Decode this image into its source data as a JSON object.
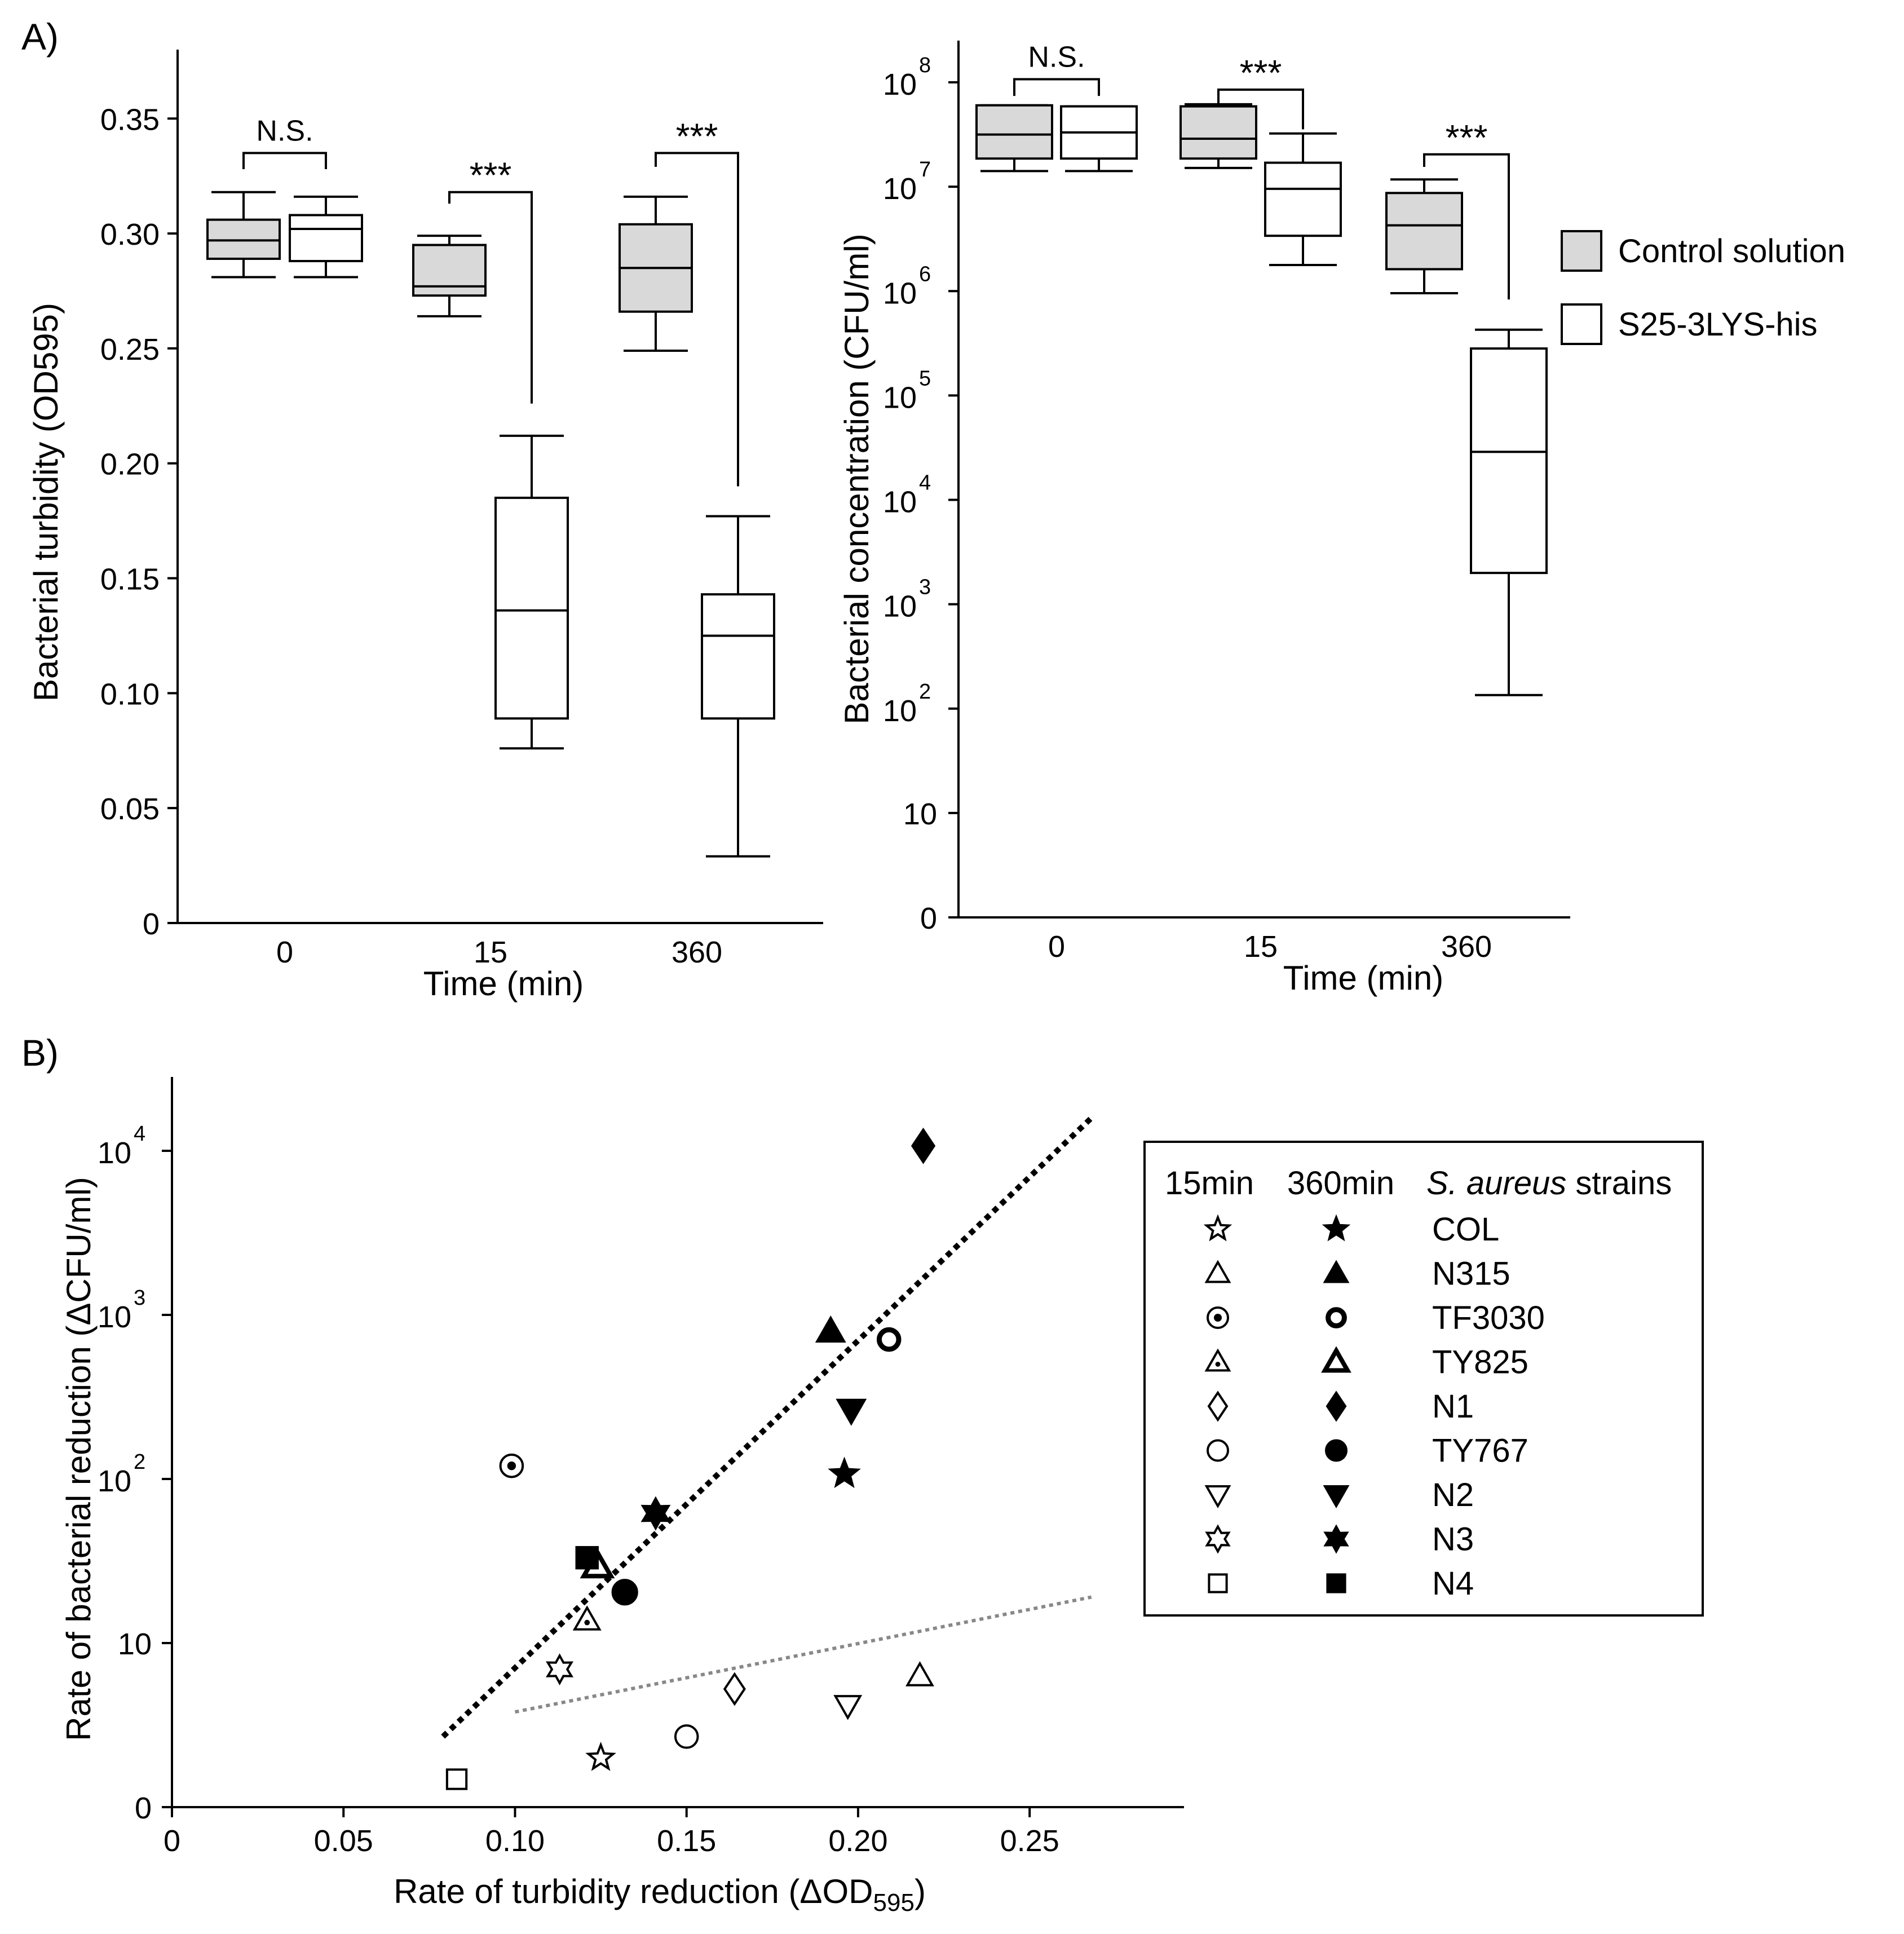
{
  "panels": {
    "a": "A)",
    "b": "B)"
  },
  "chart_data": [
    {
      "type": "boxplot",
      "id": "turbidity",
      "ylabel": "Bacterial turbidity (OD595)",
      "xlabel": "Time (min)",
      "ylim": [
        0,
        0.38
      ],
      "yticks": [
        0,
        0.05,
        0.1,
        0.15,
        0.2,
        0.25,
        0.3,
        0.35
      ],
      "ytick_labels": [
        "0",
        "0.05",
        "0.10",
        "0.15",
        "0.20",
        "0.25",
        "0.30",
        "0.35"
      ],
      "categories": [
        "0",
        "15",
        "360"
      ],
      "series": [
        {
          "name": "Control solution",
          "fill": "#d9d9d9",
          "boxes": [
            {
              "min": 0.281,
              "q1": 0.289,
              "median": 0.297,
              "q3": 0.306,
              "max": 0.318
            },
            {
              "min": 0.264,
              "q1": 0.273,
              "median": 0.277,
              "q3": 0.295,
              "max": 0.299
            },
            {
              "min": 0.249,
              "q1": 0.266,
              "median": 0.285,
              "q3": 0.304,
              "max": 0.316
            }
          ]
        },
        {
          "name": "S25-3LYS-his",
          "fill": "#ffffff",
          "boxes": [
            {
              "min": 0.281,
              "q1": 0.288,
              "median": 0.302,
              "q3": 0.308,
              "max": 0.316
            },
            {
              "min": 0.076,
              "q1": 0.089,
              "median": 0.136,
              "q3": 0.185,
              "max": 0.212
            },
            {
              "min": 0.029,
              "q1": 0.089,
              "median": 0.125,
              "q3": 0.143,
              "max": 0.177
            }
          ]
        }
      ],
      "significance": [
        {
          "group": 0,
          "label": "N.S.",
          "y": 0.335,
          "drop_left": 0.328,
          "drop_right": 0.328
        },
        {
          "group": 1,
          "label": "***",
          "y": 0.318,
          "drop_left": 0.313,
          "drop_right": 0.226
        },
        {
          "group": 2,
          "label": "***",
          "y": 0.335,
          "drop_left": 0.329,
          "drop_right": 0.19
        }
      ]
    },
    {
      "type": "boxplot",
      "id": "concentration",
      "ylabel": "Bacterial concentration (CFU/ml)",
      "xlabel": "Time (min)",
      "yscale": "log (0 = 10^0)",
      "ylim_exp": [
        0,
        8.4
      ],
      "ytick_labels": [
        {
          "exp": 0,
          "base": "0",
          "sup": ""
        },
        {
          "exp": 1,
          "base": "10",
          "sup": ""
        },
        {
          "exp": 2,
          "base": "10",
          "sup": "2"
        },
        {
          "exp": 3,
          "base": "10",
          "sup": "3"
        },
        {
          "exp": 4,
          "base": "10",
          "sup": "4"
        },
        {
          "exp": 5,
          "base": "10",
          "sup": "5"
        },
        {
          "exp": 6,
          "base": "10",
          "sup": "6"
        },
        {
          "exp": 7,
          "base": "10",
          "sup": "7"
        },
        {
          "exp": 8,
          "base": "10",
          "sup": "8"
        }
      ],
      "categories": [
        "0",
        "15",
        "360"
      ],
      "series": [
        {
          "name": "Control solution",
          "fill": "#d9d9d9",
          "boxes": [
            {
              "min": 7.15,
              "q1": 7.27,
              "median": 7.5,
              "q3": 7.78,
              "max": 7.78
            },
            {
              "min": 7.18,
              "q1": 7.27,
              "median": 7.46,
              "q3": 7.77,
              "max": 7.79
            },
            {
              "min": 5.98,
              "q1": 6.21,
              "median": 6.63,
              "q3": 6.94,
              "max": 7.07
            }
          ]
        },
        {
          "name": "S25-3LYS-his",
          "fill": "#ffffff",
          "boxes": [
            {
              "min": 7.15,
              "q1": 7.27,
              "median": 7.52,
              "q3": 7.77,
              "max": 7.77
            },
            {
              "min": 6.25,
              "q1": 6.53,
              "median": 6.98,
              "q3": 7.23,
              "max": 7.51
            },
            {
              "min": 2.13,
              "q1": 3.3,
              "median": 4.46,
              "q3": 5.45,
              "max": 5.63
            }
          ]
        }
      ],
      "significance": [
        {
          "group": 0,
          "label": "N.S.",
          "y": 8.03,
          "drop_left": 7.87,
          "drop_right": 7.87
        },
        {
          "group": 1,
          "label": "***",
          "y": 7.93,
          "drop_left": 7.8,
          "drop_right": 7.55
        },
        {
          "group": 2,
          "label": "***",
          "y": 7.31,
          "drop_left": 7.19,
          "drop_right": 5.92
        }
      ],
      "legend": [
        {
          "name": "Control solution",
          "fill": "#d9d9d9"
        },
        {
          "name": "S25-3LYS-his",
          "fill": "#ffffff"
        }
      ]
    },
    {
      "type": "scatter",
      "id": "reduction",
      "xlabel": "Rate of turbidity reduction (ΔOD",
      "xlabel_sub": "595",
      "xlabel_end": ")",
      "ylabel": "Rate of bacterial reduction (ΔCFU/ml)",
      "xlim": [
        0,
        0.295
      ],
      "xticks": [
        0,
        0.05,
        0.1,
        0.15,
        0.2,
        0.25
      ],
      "xtick_labels": [
        "0",
        "0.05",
        "0.10",
        "0.15",
        "0.20",
        "0.25"
      ],
      "yscale": "log (0 = 10^0)",
      "ylim_exp": [
        0,
        4.45
      ],
      "ytick_labels": [
        {
          "exp": 0,
          "base": "0",
          "sup": ""
        },
        {
          "exp": 1,
          "base": "10",
          "sup": ""
        },
        {
          "exp": 2,
          "base": "10",
          "sup": "2"
        },
        {
          "exp": 3,
          "base": "10",
          "sup": "3"
        },
        {
          "exp": 4,
          "base": "10",
          "sup": "4"
        }
      ],
      "legend_headers": [
        "15min",
        "360min",
        "S. aureus",
        " strains"
      ],
      "strains": [
        {
          "name": "COL",
          "open": "star",
          "filled": "star"
        },
        {
          "name": "N315",
          "open": "triangle",
          "filled": "triangle"
        },
        {
          "name": "TF3030",
          "open": "circle-dot",
          "filled": "ring"
        },
        {
          "name": "TY825",
          "open": "triangle-dot",
          "filled": "triangle-thick"
        },
        {
          "name": "N1",
          "open": "diamond",
          "filled": "diamond"
        },
        {
          "name": "TY767",
          "open": "circle",
          "filled": "circle"
        },
        {
          "name": "N2",
          "open": "triangle-down",
          "filled": "triangle-down"
        },
        {
          "name": "N3",
          "open": "hexagram",
          "filled": "hexagram"
        },
        {
          "name": "N4",
          "open": "square",
          "filled": "square"
        }
      ],
      "points_15min": [
        {
          "strain": "COL",
          "x": 0.125,
          "y_exp": 0.3
        },
        {
          "strain": "N315",
          "x": 0.218,
          "y_exp": 0.8
        },
        {
          "strain": "TF3030",
          "x": 0.099,
          "y_exp": 2.08
        },
        {
          "strain": "TY825",
          "x": 0.121,
          "y_exp": 1.14
        },
        {
          "strain": "N1",
          "x": 0.164,
          "y_exp": 0.72
        },
        {
          "strain": "TY767",
          "x": 0.15,
          "y_exp": 0.43
        },
        {
          "strain": "N2",
          "x": 0.197,
          "y_exp": 0.62
        },
        {
          "strain": "N3",
          "x": 0.113,
          "y_exp": 0.84
        },
        {
          "strain": "N4",
          "x": 0.083,
          "y_exp": 0.17
        }
      ],
      "points_360min": [
        {
          "strain": "COL",
          "x": 0.196,
          "y_exp": 2.03
        },
        {
          "strain": "N315",
          "x": 0.192,
          "y_exp": 2.9
        },
        {
          "strain": "TF3030",
          "x": 0.209,
          "y_exp": 2.85
        },
        {
          "strain": "TY825",
          "x": 0.124,
          "y_exp": 1.47
        },
        {
          "strain": "N1",
          "x": 0.219,
          "y_exp": 4.03
        },
        {
          "strain": "TY767",
          "x": 0.132,
          "y_exp": 1.31
        },
        {
          "strain": "N2",
          "x": 0.198,
          "y_exp": 2.42
        },
        {
          "strain": "N3",
          "x": 0.141,
          "y_exp": 1.79
        },
        {
          "strain": "N4",
          "x": 0.121,
          "y_exp": 1.52
        }
      ],
      "fit_lines": [
        {
          "name": "360min trend",
          "style": "dotted-black",
          "x": [
            0.079,
            0.268
          ],
          "y_exp": [
            0.43,
            4.2
          ]
        },
        {
          "name": "15min trend",
          "style": "dotted-gray",
          "x": [
            0.1,
            0.268
          ],
          "y_exp": [
            0.58,
            1.28
          ]
        }
      ]
    }
  ]
}
